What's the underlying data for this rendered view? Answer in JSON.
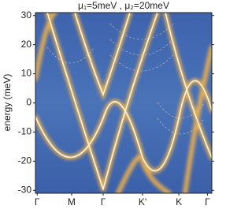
{
  "chart_data": {
    "type": "heatmap",
    "title": "μ₁=5meV , μ₂=20meV",
    "y_label": "energy (meV)",
    "categories": [
      "Γ",
      "M",
      "Γ",
      "K'",
      "K",
      "Γ"
    ],
    "ylim": [
      -31,
      31
    ],
    "yticks": [
      -30,
      -20,
      -10,
      0,
      10,
      20,
      30
    ]
  }
}
